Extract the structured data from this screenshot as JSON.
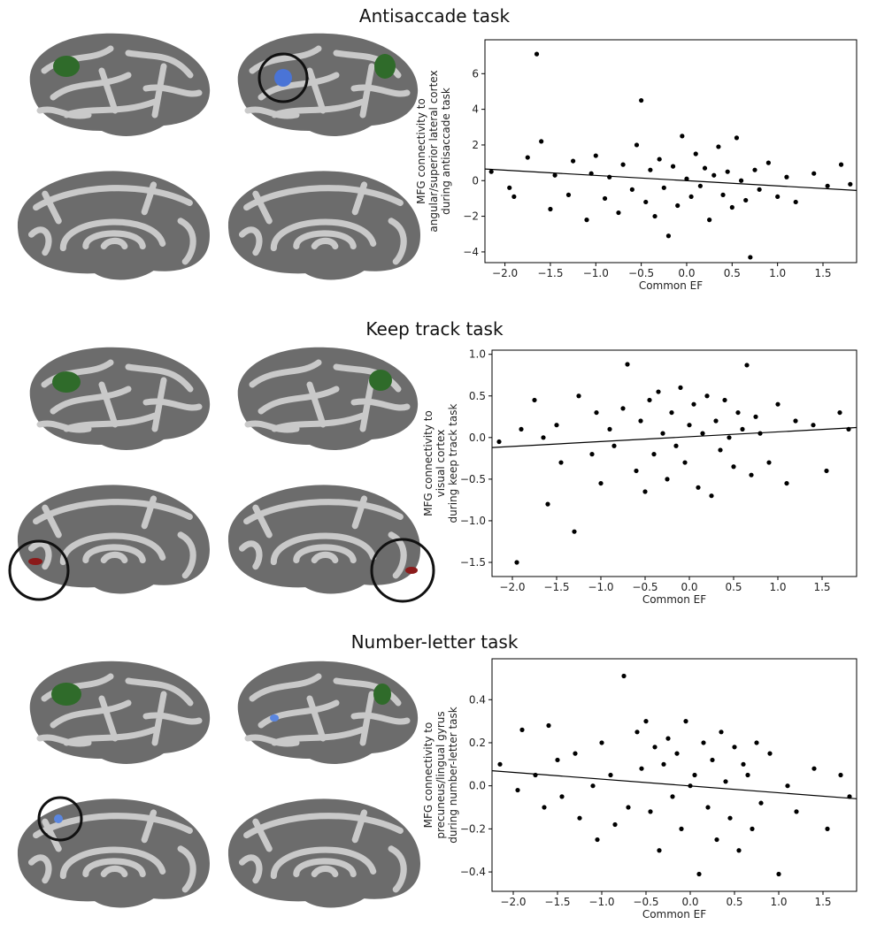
{
  "chart_data": [
    {
      "type": "scatter",
      "title": "Antisaccade task",
      "x_label": "Common EF",
      "y_label": [
        "MFG connectivity to",
        "angular/superior lateral cortex",
        "during antisaccade task"
      ],
      "color": "#000000",
      "x": [
        -2.15,
        -1.95,
        -1.9,
        -1.75,
        -1.65,
        -1.6,
        -1.5,
        -1.45,
        -1.3,
        -1.25,
        -1.1,
        -1.05,
        -1.0,
        -0.9,
        -0.85,
        -0.75,
        -0.7,
        -0.6,
        -0.55,
        -0.5,
        -0.45,
        -0.4,
        -0.35,
        -0.3,
        -0.25,
        -0.2,
        -0.15,
        -0.1,
        -0.05,
        0.0,
        0.05,
        0.1,
        0.15,
        0.2,
        0.25,
        0.3,
        0.35,
        0.4,
        0.45,
        0.5,
        0.55,
        0.6,
        0.65,
        0.7,
        0.75,
        0.8,
        0.9,
        1.0,
        1.1,
        1.2,
        1.4,
        1.55,
        1.7,
        1.8
      ],
      "y": [
        0.5,
        -0.4,
        -0.9,
        1.3,
        7.1,
        2.2,
        -1.6,
        0.3,
        -0.8,
        1.1,
        -2.2,
        0.4,
        1.4,
        -1.0,
        0.2,
        -1.8,
        0.9,
        -0.5,
        2.0,
        4.5,
        -1.2,
        0.6,
        -2.0,
        1.2,
        -0.4,
        -3.1,
        0.8,
        -1.4,
        2.5,
        0.1,
        -0.9,
        1.5,
        -0.3,
        0.7,
        -2.2,
        0.3,
        1.9,
        -0.8,
        0.5,
        -1.5,
        2.4,
        0.0,
        -1.1,
        -4.3,
        0.6,
        -0.5,
        1.0,
        -0.9,
        0.2,
        -1.2,
        0.4,
        -0.3,
        0.9,
        -0.2
      ],
      "fit": {
        "x": [
          -2.22,
          1.87
        ],
        "y": [
          0.65,
          -0.55
        ]
      },
      "xlim": [
        -2.22,
        1.87
      ],
      "ylim": [
        -4.6,
        7.9
      ],
      "xticks": [
        {
          "value": -2.0,
          "label": "−2.0"
        },
        {
          "value": -1.5,
          "label": "−1.5"
        },
        {
          "value": -1.0,
          "label": "−1.0"
        },
        {
          "value": -0.5,
          "label": "−0.5"
        },
        {
          "value": 0.0,
          "label": "0.0"
        },
        {
          "value": 0.5,
          "label": "0.5"
        },
        {
          "value": 1.0,
          "label": "1.0"
        },
        {
          "value": 1.5,
          "label": "1.5"
        }
      ],
      "yticks": [
        {
          "value": -4,
          "label": "−4"
        },
        {
          "value": -2,
          "label": "−2"
        },
        0,
        2,
        4,
        6
      ]
    },
    {
      "type": "scatter",
      "title": "Keep track task",
      "x_label": "Common EF",
      "y_label": [
        "MFG connectivity to",
        "visual cortex",
        "during keep track task"
      ],
      "color": "#000000",
      "x": [
        -2.15,
        -1.95,
        -1.9,
        -1.75,
        -1.65,
        -1.6,
        -1.5,
        -1.45,
        -1.3,
        -1.25,
        -1.1,
        -1.05,
        -1.0,
        -0.9,
        -0.85,
        -0.75,
        -0.7,
        -0.6,
        -0.55,
        -0.5,
        -0.45,
        -0.4,
        -0.35,
        -0.3,
        -0.25,
        -0.2,
        -0.15,
        -0.1,
        -0.05,
        0.0,
        0.05,
        0.1,
        0.15,
        0.2,
        0.25,
        0.3,
        0.35,
        0.4,
        0.45,
        0.5,
        0.55,
        0.6,
        0.65,
        0.7,
        0.75,
        0.8,
        0.9,
        1.0,
        1.1,
        1.2,
        1.4,
        1.55,
        1.7,
        1.8
      ],
      "y": [
        -0.05,
        -1.5,
        0.1,
        0.45,
        0.0,
        -0.8,
        0.15,
        -0.3,
        -1.13,
        0.5,
        -0.2,
        0.3,
        -0.55,
        0.1,
        -0.1,
        0.35,
        0.88,
        -0.4,
        0.2,
        -0.65,
        0.45,
        -0.2,
        0.55,
        0.05,
        -0.5,
        0.3,
        -0.1,
        0.6,
        -0.3,
        0.15,
        0.4,
        -0.6,
        0.05,
        0.5,
        -0.7,
        0.2,
        -0.15,
        0.45,
        0.0,
        -0.35,
        0.3,
        0.1,
        0.87,
        -0.45,
        0.25,
        0.05,
        -0.3,
        0.4,
        -0.55,
        0.2,
        0.15,
        -0.4,
        0.3,
        0.1
      ],
      "fit": {
        "x": [
          -2.23,
          1.89
        ],
        "y": [
          -0.12,
          0.12
        ]
      },
      "xlim": [
        -2.23,
        1.89
      ],
      "ylim": [
        -1.67,
        1.05
      ],
      "xticks": [
        {
          "value": -2.0,
          "label": "−2.0"
        },
        {
          "value": -1.5,
          "label": "−1.5"
        },
        {
          "value": -1.0,
          "label": "−1.0"
        },
        {
          "value": -0.5,
          "label": "−0.5"
        },
        {
          "value": 0.0,
          "label": "0.0"
        },
        {
          "value": 0.5,
          "label": "0.5"
        },
        {
          "value": 1.0,
          "label": "1.0"
        },
        {
          "value": 1.5,
          "label": "1.5"
        }
      ],
      "yticks": [
        {
          "value": -1.5,
          "label": "−1.5"
        },
        {
          "value": -1.0,
          "label": "−1.0"
        },
        {
          "value": -0.5,
          "label": "−0.5"
        },
        {
          "value": 0.0,
          "label": "0.0"
        },
        {
          "value": 0.5,
          "label": "0.5"
        },
        {
          "value": 1.0,
          "label": "1.0"
        }
      ]
    },
    {
      "type": "scatter",
      "title": "Number-letter task",
      "x_label": "Common EF",
      "y_label": [
        "MFG connectivity to",
        "precuneus/lingual gyrus",
        "during number-letter task"
      ],
      "color": "#000000",
      "x": [
        -2.15,
        -1.95,
        -1.9,
        -1.75,
        -1.65,
        -1.6,
        -1.5,
        -1.45,
        -1.3,
        -1.25,
        -1.1,
        -1.05,
        -1.0,
        -0.9,
        -0.85,
        -0.75,
        -0.7,
        -0.6,
        -0.55,
        -0.5,
        -0.45,
        -0.4,
        -0.35,
        -0.3,
        -0.25,
        -0.2,
        -0.15,
        -0.1,
        -0.05,
        0.0,
        0.05,
        0.1,
        0.15,
        0.2,
        0.25,
        0.3,
        0.35,
        0.4,
        0.45,
        0.5,
        0.55,
        0.6,
        0.65,
        0.7,
        0.75,
        0.8,
        0.9,
        1.0,
        1.1,
        1.2,
        1.4,
        1.55,
        1.7,
        1.8
      ],
      "y": [
        0.1,
        -0.02,
        0.26,
        0.05,
        -0.1,
        0.28,
        0.12,
        -0.05,
        0.15,
        -0.15,
        0.0,
        -0.25,
        0.2,
        0.05,
        -0.18,
        0.51,
        -0.1,
        0.25,
        0.08,
        0.3,
        -0.12,
        0.18,
        -0.3,
        0.1,
        0.22,
        -0.05,
        0.15,
        -0.2,
        0.3,
        0.0,
        0.05,
        -0.41,
        0.2,
        -0.1,
        0.12,
        -0.25,
        0.25,
        0.02,
        -0.15,
        0.18,
        -0.3,
        0.1,
        0.05,
        -0.2,
        0.2,
        -0.08,
        0.15,
        -0.41,
        0.0,
        -0.12,
        0.08,
        -0.2,
        0.05,
        -0.05
      ],
      "fit": {
        "x": [
          -2.24,
          1.88
        ],
        "y": [
          0.07,
          -0.06
        ]
      },
      "xlim": [
        -2.24,
        1.88
      ],
      "ylim": [
        -0.49,
        0.59
      ],
      "xticks": [
        {
          "value": -2.0,
          "label": "−2.0"
        },
        {
          "value": -1.5,
          "label": "−1.5"
        },
        {
          "value": -1.0,
          "label": "−1.0"
        },
        {
          "value": -0.5,
          "label": "−0.5"
        },
        {
          "value": 0.0,
          "label": "0.0"
        },
        {
          "value": 0.5,
          "label": "0.5"
        },
        {
          "value": 1.0,
          "label": "1.0"
        },
        {
          "value": 1.5,
          "label": "1.5"
        }
      ],
      "yticks": [
        {
          "value": -0.4,
          "label": "−0.4"
        },
        {
          "value": -0.2,
          "label": "−0.2"
        },
        {
          "value": 0.0,
          "label": "0.0"
        },
        0.2,
        0.4
      ]
    }
  ]
}
